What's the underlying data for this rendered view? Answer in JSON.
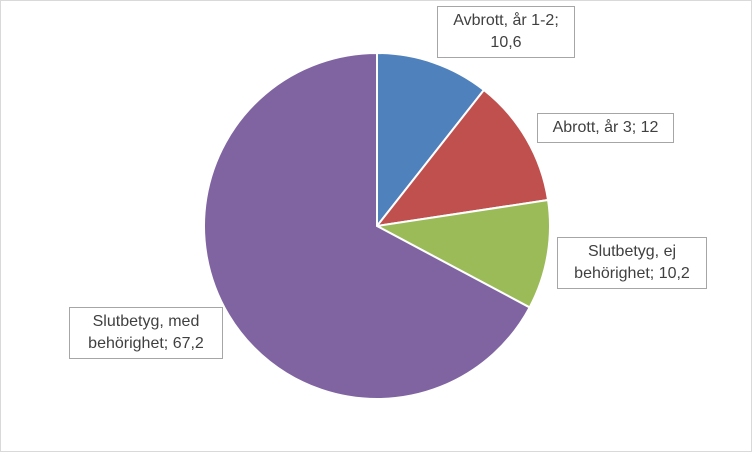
{
  "chart_data": {
    "type": "pie",
    "categories": [
      "Avbrott, år 1-2",
      "Abrott, år 3",
      "Slutbetyg, ej behörighet",
      "Slutbetyg, med behörighet"
    ],
    "values": [
      10.6,
      12,
      10.2,
      67.2
    ],
    "value_labels": [
      "10,6",
      "12",
      "10,2",
      "67,2"
    ],
    "label_separator": "; ",
    "colors": [
      "#4f81bd",
      "#c0504d",
      "#9bbb59",
      "#8064a2"
    ]
  }
}
